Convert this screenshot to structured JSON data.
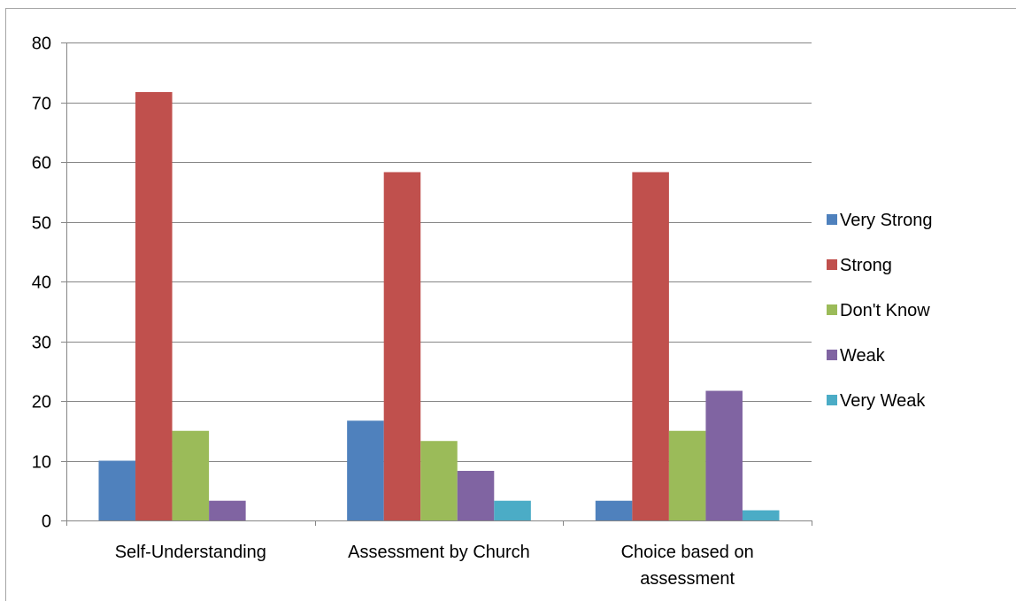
{
  "chart_data": {
    "type": "bar",
    "categories": [
      [
        "Self-Understanding"
      ],
      [
        "Assessment by Church"
      ],
      [
        "Choice based on",
        "assessment"
      ]
    ],
    "series": [
      {
        "name": "Very Strong",
        "color": "#4f81bd",
        "values": [
          10,
          16.7,
          3.3
        ]
      },
      {
        "name": "Strong",
        "color": "#c0504d",
        "values": [
          71.7,
          58.3,
          58.3
        ]
      },
      {
        "name": "Don't Know",
        "color": "#9bbb59",
        "values": [
          15,
          13.3,
          15
        ]
      },
      {
        "name": "Weak",
        "color": "#8064a2",
        "values": [
          3.3,
          8.3,
          21.7
        ]
      },
      {
        "name": "Very Weak",
        "color": "#4bacc6",
        "values": [
          0,
          3.3,
          1.7
        ]
      }
    ],
    "ylim": [
      0,
      80
    ],
    "yticks": [
      0,
      10,
      20,
      30,
      40,
      50,
      60,
      70,
      80
    ],
    "grid": true,
    "legend_position": "right",
    "gridline_color": "#868686",
    "title": "",
    "xlabel": "",
    "ylabel": ""
  }
}
